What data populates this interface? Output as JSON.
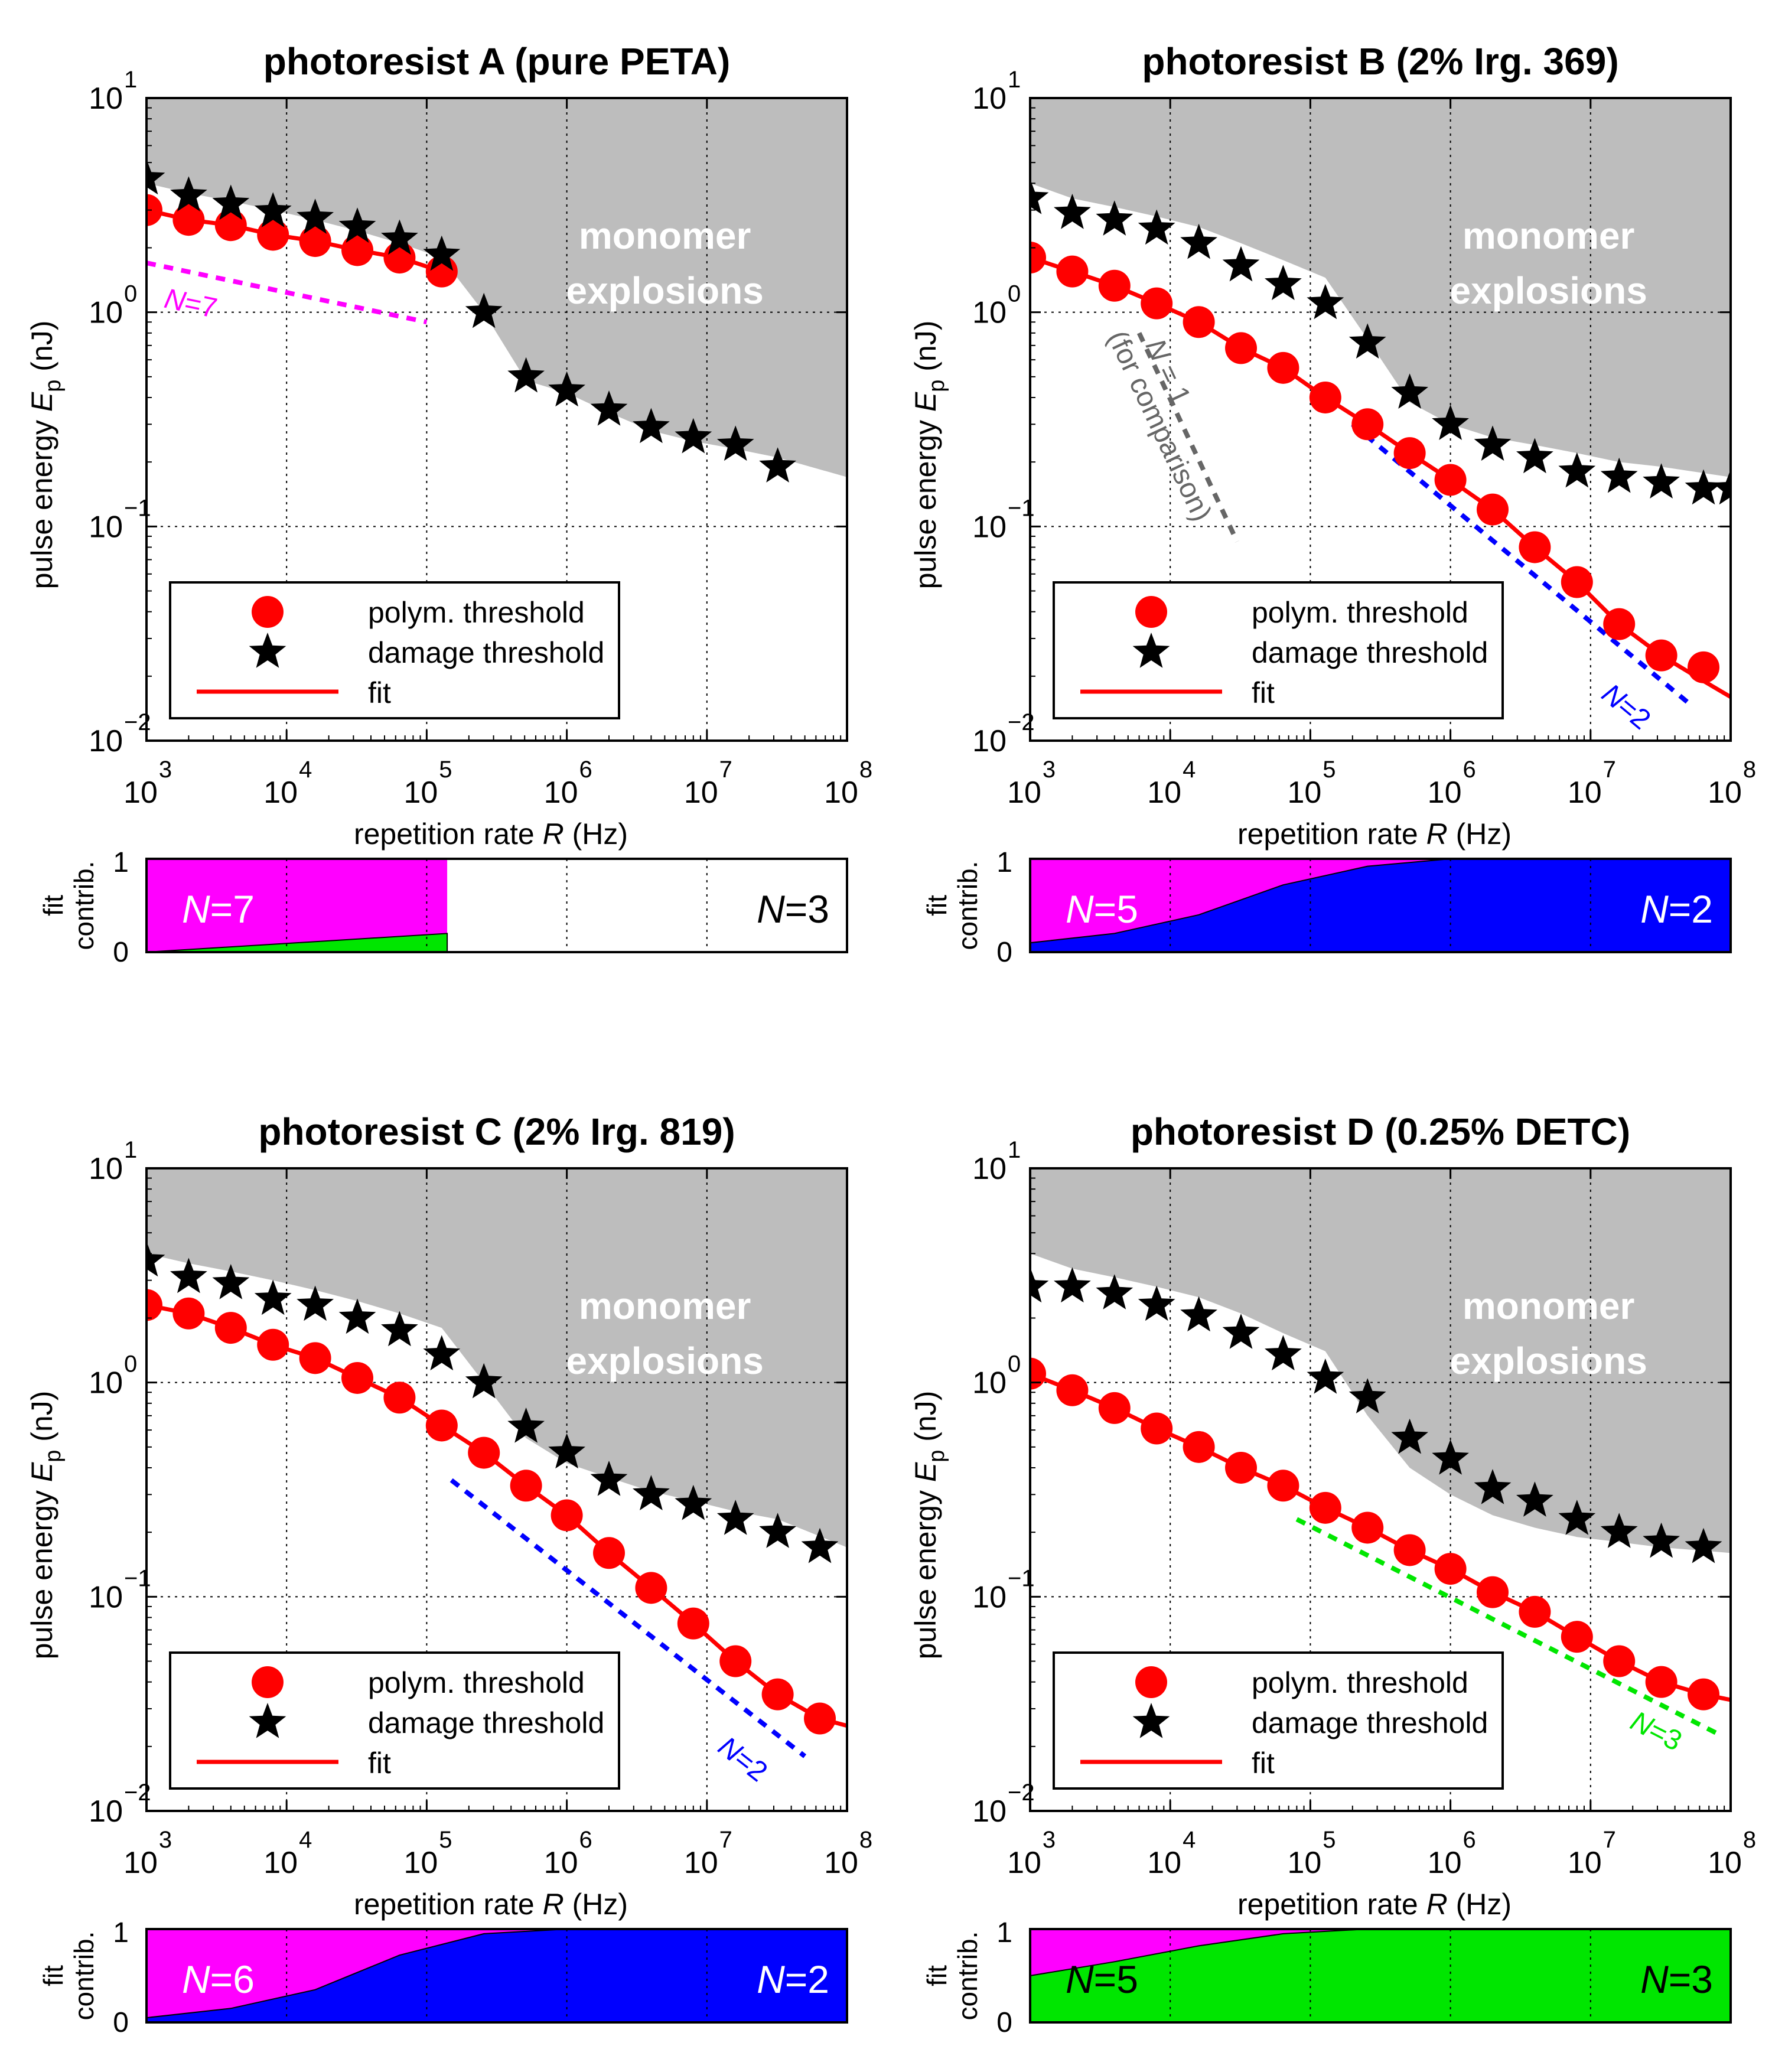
{
  "chart_data": [
    {
      "type": "scatter",
      "title": "photoresist A (pure PETA)",
      "xlabel": "repetition rate R (Hz)",
      "ylabel": "pulse energy Ep (nJ)",
      "xscale": "log",
      "yscale": "log",
      "xlim": [
        1000,
        100000000
      ],
      "ylim": [
        0.01,
        10
      ],
      "grid": true,
      "x_ticks": [
        "10^3",
        "10^4",
        "10^5",
        "10^6",
        "10^7",
        "10^8"
      ],
      "y_ticks": [
        "10^-2",
        "10^-1",
        "10^0",
        "10^1"
      ],
      "region_label": "monomer explosions",
      "explosion_boundary": {
        "x": [
          1000,
          2000,
          4000,
          8000,
          16000,
          32000,
          64000,
          128000,
          256000,
          512000,
          1000000,
          2000000,
          4000000,
          8000000,
          16000000,
          32000000,
          100000000
        ],
        "y": [
          4.0,
          3.6,
          3.3,
          3.0,
          2.7,
          2.4,
          2.1,
          1.8,
          1.0,
          0.48,
          0.42,
          0.34,
          0.28,
          0.25,
          0.23,
          0.21,
          0.17
        ]
      },
      "series": [
        {
          "name": "polym. threshold",
          "marker": "circle",
          "color": "#ff0000",
          "x": [
            1000,
            2000,
            4000,
            8000,
            16000,
            32000,
            64000,
            128000
          ],
          "y": [
            3.0,
            2.7,
            2.55,
            2.3,
            2.15,
            1.95,
            1.8,
            1.55
          ]
        },
        {
          "name": "damage threshold",
          "marker": "star",
          "color": "#000000",
          "x": [
            1000,
            2000,
            4000,
            8000,
            16000,
            32000,
            64000,
            128000,
            256000,
            512000,
            1000000,
            2000000,
            4000000,
            8000000,
            16000000,
            32000000
          ],
          "y": [
            4.2,
            3.5,
            3.2,
            2.95,
            2.75,
            2.5,
            2.2,
            1.85,
            1.0,
            0.5,
            0.43,
            0.35,
            0.29,
            0.26,
            0.24,
            0.19
          ]
        },
        {
          "name": "fit",
          "marker": "line",
          "color": "#ff0000",
          "x": [
            1000,
            2000,
            4000,
            8000,
            16000,
            32000,
            64000,
            128000
          ],
          "y": [
            3.0,
            2.7,
            2.55,
            2.3,
            2.15,
            1.95,
            1.8,
            1.55
          ]
        }
      ],
      "guide_lines": [
        {
          "label": "N=7",
          "color": "#ff00ff",
          "x": [
            1000,
            100000
          ],
          "y": [
            1.7,
            0.9
          ]
        }
      ],
      "legend_entries": [
        "polym. threshold",
        "damage threshold",
        "fit"
      ],
      "legend": "bottom-left",
      "fit_contrib": {
        "ylabel": "fit contrib.",
        "yticks": [
          "0",
          "1"
        ],
        "xmax": 140000,
        "left_label": "N=7",
        "right_label": "N=3",
        "x": [
          1000,
          140000
        ],
        "lower": [
          0.0,
          0.2
        ],
        "lower_color": "#00e600",
        "upper_color": "#ff00ff"
      }
    },
    {
      "type": "scatter",
      "title": "photoresist B (2% Irg. 369)",
      "xlabel": "repetition rate R (Hz)",
      "ylabel": "pulse energy Ep (nJ)",
      "xscale": "log",
      "yscale": "log",
      "xlim": [
        1000,
        100000000
      ],
      "ylim": [
        0.01,
        10
      ],
      "grid": true,
      "x_ticks": [
        "10^3",
        "10^4",
        "10^5",
        "10^6",
        "10^7",
        "10^8"
      ],
      "y_ticks": [
        "10^-2",
        "10^-1",
        "10^0",
        "10^1"
      ],
      "region_label": "monomer explosions",
      "explosion_boundary": {
        "x": [
          1000,
          2000,
          4000,
          8000,
          16000,
          32000,
          64000,
          128000,
          256000,
          512000,
          1000000,
          2000000,
          4000000,
          8000000,
          16000000,
          32000000,
          100000000
        ],
        "y": [
          4.0,
          3.4,
          3.1,
          2.8,
          2.5,
          2.1,
          1.75,
          1.45,
          0.75,
          0.38,
          0.3,
          0.26,
          0.24,
          0.22,
          0.2,
          0.19,
          0.17
        ]
      },
      "series": [
        {
          "name": "polym. threshold",
          "marker": "circle",
          "color": "#ff0000",
          "x": [
            1000,
            2000,
            4000,
            8000,
            16000,
            32000,
            64000,
            128000,
            256000,
            512000,
            1000000,
            2000000,
            4000000,
            8000000,
            16000000,
            32000000,
            64000000
          ],
          "y": [
            1.8,
            1.55,
            1.33,
            1.1,
            0.9,
            0.68,
            0.55,
            0.4,
            0.3,
            0.22,
            0.165,
            0.12,
            0.08,
            0.055,
            0.035,
            0.025,
            0.022
          ]
        },
        {
          "name": "damage threshold",
          "marker": "star",
          "color": "#000000",
          "x": [
            1000,
            2000,
            4000,
            8000,
            16000,
            32000,
            64000,
            128000,
            256000,
            512000,
            1000000,
            2000000,
            4000000,
            8000000,
            16000000,
            32000000,
            64000000,
            100000000
          ],
          "y": [
            3.4,
            2.9,
            2.7,
            2.45,
            2.1,
            1.65,
            1.35,
            1.1,
            0.72,
            0.42,
            0.3,
            0.24,
            0.21,
            0.18,
            0.17,
            0.16,
            0.15,
            0.15
          ]
        },
        {
          "name": "fit",
          "marker": "line",
          "color": "#ff0000",
          "x": [
            1000,
            2000,
            4000,
            8000,
            16000,
            32000,
            64000,
            128000,
            256000,
            512000,
            1000000,
            2000000,
            4000000,
            8000000,
            16000000,
            32000000,
            64000000,
            100000000
          ],
          "y": [
            1.8,
            1.55,
            1.33,
            1.1,
            0.9,
            0.68,
            0.55,
            0.4,
            0.3,
            0.22,
            0.165,
            0.12,
            0.08,
            0.055,
            0.035,
            0.025,
            0.019,
            0.016
          ]
        }
      ],
      "guide_lines": [
        {
          "label": "N=1 (for comparison)",
          "color": "#666666",
          "x": [
            6000,
            30000
          ],
          "y": [
            0.8,
            0.085
          ]
        },
        {
          "label": "N=2",
          "color": "#0000ff",
          "x": [
            200000,
            50000000
          ],
          "y": [
            0.3,
            0.015
          ]
        }
      ],
      "legend_entries": [
        "polym. threshold",
        "damage threshold",
        "fit"
      ],
      "legend": "bottom-left",
      "fit_contrib": {
        "ylabel": "fit contrib.",
        "yticks": [
          "0",
          "1"
        ],
        "xmax": 100000000,
        "left_label": "N=5",
        "right_label": "N=2",
        "x": [
          1000,
          4000,
          16000,
          64000,
          256000,
          1000000,
          100000000
        ],
        "lower": [
          0.1,
          0.2,
          0.4,
          0.72,
          0.92,
          1.0,
          1.0
        ],
        "lower_color": "#0000ff",
        "upper_color": "#ff00ff"
      }
    },
    {
      "type": "scatter",
      "title": "photoresist C (2% Irg. 819)",
      "xlabel": "repetition rate R (Hz)",
      "ylabel": "pulse energy Ep (nJ)",
      "xscale": "log",
      "yscale": "log",
      "xlim": [
        1000,
        100000000
      ],
      "ylim": [
        0.01,
        10
      ],
      "grid": true,
      "x_ticks": [
        "10^3",
        "10^4",
        "10^5",
        "10^6",
        "10^7",
        "10^8"
      ],
      "y_ticks": [
        "10^-2",
        "10^-1",
        "10^0",
        "10^1"
      ],
      "region_label": "monomer explosions",
      "explosion_boundary": {
        "x": [
          1000,
          2000,
          4000,
          8000,
          16000,
          32000,
          64000,
          128000,
          256000,
          512000,
          1000000,
          2000000,
          4000000,
          8000000,
          16000000,
          32000000,
          100000000
        ],
        "y": [
          4.0,
          3.6,
          3.3,
          3.0,
          2.7,
          2.4,
          2.1,
          1.8,
          1.0,
          0.55,
          0.42,
          0.36,
          0.31,
          0.28,
          0.25,
          0.23,
          0.17
        ]
      },
      "series": [
        {
          "name": "polym. threshold",
          "marker": "circle",
          "color": "#ff0000",
          "x": [
            1000,
            2000,
            4000,
            8000,
            16000,
            32000,
            64000,
            128000,
            256000,
            512000,
            1000000,
            2000000,
            4000000,
            8000000,
            16000000,
            32000000,
            64000000
          ],
          "y": [
            2.3,
            2.1,
            1.8,
            1.5,
            1.3,
            1.05,
            0.85,
            0.63,
            0.47,
            0.33,
            0.24,
            0.16,
            0.11,
            0.075,
            0.05,
            0.035,
            0.027
          ]
        },
        {
          "name": "damage threshold",
          "marker": "star",
          "color": "#000000",
          "x": [
            1000,
            2000,
            4000,
            8000,
            16000,
            32000,
            64000,
            128000,
            256000,
            512000,
            1000000,
            2000000,
            4000000,
            8000000,
            16000000,
            32000000,
            64000000
          ],
          "y": [
            3.7,
            3.1,
            2.9,
            2.45,
            2.3,
            2.0,
            1.75,
            1.35,
            1.0,
            0.62,
            0.47,
            0.35,
            0.3,
            0.27,
            0.23,
            0.2,
            0.17
          ]
        },
        {
          "name": "fit",
          "marker": "line",
          "color": "#ff0000",
          "x": [
            1000,
            2000,
            4000,
            8000,
            16000,
            32000,
            64000,
            128000,
            256000,
            512000,
            1000000,
            2000000,
            4000000,
            8000000,
            16000000,
            32000000,
            64000000,
            100000000
          ],
          "y": [
            2.3,
            2.1,
            1.8,
            1.5,
            1.3,
            1.05,
            0.85,
            0.63,
            0.47,
            0.33,
            0.24,
            0.16,
            0.11,
            0.075,
            0.05,
            0.035,
            0.027,
            0.025
          ]
        }
      ],
      "guide_lines": [
        {
          "label": "N=2",
          "color": "#0000ff",
          "x": [
            150000,
            50000000
          ],
          "y": [
            0.35,
            0.018
          ]
        }
      ],
      "legend_entries": [
        "polym. threshold",
        "damage threshold",
        "fit"
      ],
      "legend": "bottom-left",
      "fit_contrib": {
        "ylabel": "fit contrib.",
        "yticks": [
          "0",
          "1"
        ],
        "xmax": 100000000,
        "left_label": "N=6",
        "right_label": "N=2",
        "x": [
          1000,
          4000,
          16000,
          64000,
          256000,
          1000000,
          100000000
        ],
        "lower": [
          0.05,
          0.15,
          0.35,
          0.72,
          0.95,
          1.0,
          1.0
        ],
        "lower_color": "#0000ff",
        "upper_color": "#ff00ff"
      }
    },
    {
      "type": "scatter",
      "title": "photoresist D (0.25% DETC)",
      "xlabel": "repetition rate R (Hz)",
      "ylabel": "pulse energy Ep (nJ)",
      "xscale": "log",
      "yscale": "log",
      "xlim": [
        1000,
        100000000
      ],
      "ylim": [
        0.01,
        10
      ],
      "grid": true,
      "x_ticks": [
        "10^3",
        "10^4",
        "10^5",
        "10^6",
        "10^7",
        "10^8"
      ],
      "y_ticks": [
        "10^-2",
        "10^-1",
        "10^0",
        "10^1"
      ],
      "region_label": "monomer explosions",
      "explosion_boundary": {
        "x": [
          1000,
          2000,
          4000,
          8000,
          16000,
          32000,
          64000,
          128000,
          256000,
          512000,
          1000000,
          2000000,
          4000000,
          8000000,
          16000000,
          32000000,
          100000000
        ],
        "y": [
          4.0,
          3.4,
          3.1,
          2.8,
          2.5,
          2.1,
          1.7,
          1.4,
          0.7,
          0.4,
          0.3,
          0.24,
          0.21,
          0.19,
          0.18,
          0.17,
          0.16
        ]
      },
      "series": [
        {
          "name": "polym. threshold",
          "marker": "circle",
          "color": "#ff0000",
          "x": [
            1000,
            2000,
            4000,
            8000,
            16000,
            32000,
            64000,
            128000,
            256000,
            512000,
            1000000,
            2000000,
            4000000,
            8000000,
            16000000,
            32000000,
            64000000
          ],
          "y": [
            1.1,
            0.92,
            0.76,
            0.61,
            0.5,
            0.4,
            0.33,
            0.26,
            0.21,
            0.165,
            0.135,
            0.105,
            0.085,
            0.065,
            0.05,
            0.04,
            0.035
          ]
        },
        {
          "name": "damage threshold",
          "marker": "star",
          "color": "#000000",
          "x": [
            1000,
            2000,
            4000,
            8000,
            16000,
            32000,
            64000,
            128000,
            256000,
            512000,
            1000000,
            2000000,
            4000000,
            8000000,
            16000000,
            32000000,
            64000000
          ],
          "y": [
            2.8,
            2.8,
            2.6,
            2.3,
            2.05,
            1.7,
            1.35,
            1.05,
            0.85,
            0.55,
            0.44,
            0.32,
            0.28,
            0.23,
            0.2,
            0.18,
            0.17
          ]
        },
        {
          "name": "fit",
          "marker": "line",
          "color": "#ff0000",
          "x": [
            1000,
            2000,
            4000,
            8000,
            16000,
            32000,
            64000,
            128000,
            256000,
            512000,
            1000000,
            2000000,
            4000000,
            8000000,
            16000000,
            32000000,
            64000000,
            100000000
          ],
          "y": [
            1.1,
            0.92,
            0.76,
            0.61,
            0.5,
            0.4,
            0.33,
            0.26,
            0.21,
            0.165,
            0.135,
            0.105,
            0.085,
            0.065,
            0.05,
            0.04,
            0.035,
            0.033
          ]
        }
      ],
      "guide_lines": [
        {
          "label": "N=3",
          "color": "#00e600",
          "x": [
            80000,
            80000000
          ],
          "y": [
            0.23,
            0.023
          ]
        }
      ],
      "legend_entries": [
        "polym. threshold",
        "damage threshold",
        "fit"
      ],
      "legend": "bottom-left",
      "fit_contrib": {
        "ylabel": "fit contrib.",
        "yticks": [
          "0",
          "1"
        ],
        "xmax": 100000000,
        "left_label": "N=5",
        "right_label": "N=3",
        "x": [
          1000,
          4000,
          16000,
          64000,
          256000,
          1000000,
          100000000
        ],
        "lower": [
          0.5,
          0.65,
          0.82,
          0.95,
          1.0,
          1.0,
          1.0
        ],
        "lower_color": "#00e600",
        "upper_color": "#ff00ff"
      }
    }
  ]
}
